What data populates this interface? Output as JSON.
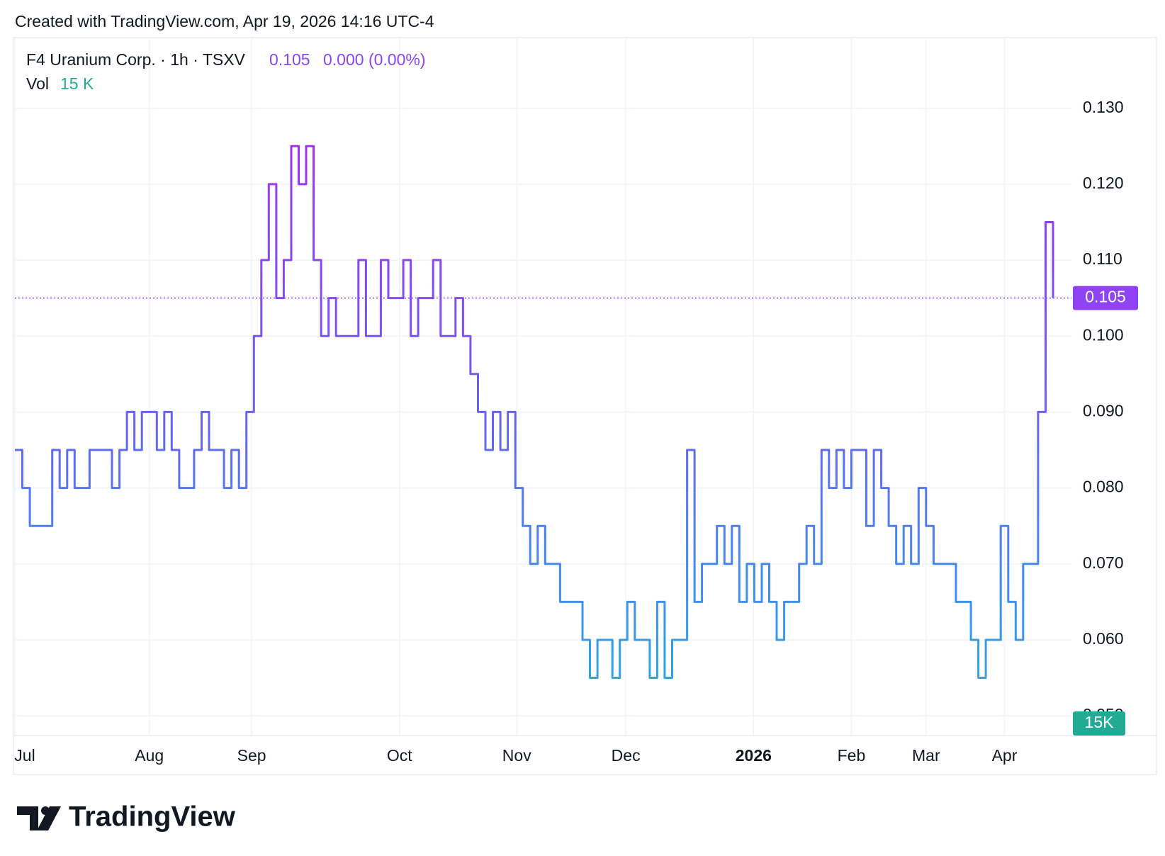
{
  "header": {
    "created": "Created with TradingView.com, Apr 19, 2026 14:16 UTC-4",
    "brand": "TradingView"
  },
  "chart_data": {
    "type": "line",
    "title": "F4 Uranium Corp. · 1h · TSXV",
    "last_price": {
      "value": 0.105,
      "label": "0.105"
    },
    "change": "0.000 (0.00%)",
    "volume_name": "Vol",
    "volume_legend": "15 K",
    "volume_badge": "15K",
    "gradient": [
      "#b81ff0",
      "#6f5cf2",
      "#1fb2ea"
    ],
    "values": [
      0.085,
      0.08,
      0.075,
      0.075,
      0.075,
      0.085,
      0.08,
      0.085,
      0.08,
      0.08,
      0.085,
      0.085,
      0.085,
      0.08,
      0.085,
      0.09,
      0.085,
      0.09,
      0.09,
      0.085,
      0.09,
      0.085,
      0.08,
      0.08,
      0.085,
      0.09,
      0.085,
      0.085,
      0.08,
      0.085,
      0.08,
      0.09,
      0.1,
      0.11,
      0.12,
      0.105,
      0.11,
      0.125,
      0.12,
      0.125,
      0.11,
      0.1,
      0.105,
      0.1,
      0.1,
      0.1,
      0.11,
      0.1,
      0.1,
      0.11,
      0.105,
      0.105,
      0.11,
      0.1,
      0.105,
      0.105,
      0.11,
      0.1,
      0.1,
      0.105,
      0.1,
      0.095,
      0.09,
      0.085,
      0.09,
      0.085,
      0.09,
      0.08,
      0.075,
      0.07,
      0.075,
      0.07,
      0.07,
      0.065,
      0.065,
      0.065,
      0.06,
      0.055,
      0.06,
      0.06,
      0.055,
      0.06,
      0.065,
      0.06,
      0.06,
      0.055,
      0.065,
      0.055,
      0.06,
      0.06,
      0.085,
      0.065,
      0.07,
      0.07,
      0.075,
      0.07,
      0.075,
      0.065,
      0.07,
      0.065,
      0.07,
      0.065,
      0.06,
      0.065,
      0.065,
      0.07,
      0.075,
      0.07,
      0.085,
      0.08,
      0.085,
      0.08,
      0.085,
      0.085,
      0.075,
      0.085,
      0.08,
      0.075,
      0.07,
      0.075,
      0.07,
      0.08,
      0.075,
      0.07,
      0.07,
      0.07,
      0.065,
      0.065,
      0.06,
      0.055,
      0.06,
      0.06,
      0.075,
      0.065,
      0.06,
      0.07,
      0.07,
      0.09,
      0.115,
      0.105
    ],
    "xlim": [
      0,
      139
    ],
    "xticks": [
      {
        "value": 0,
        "label": "Jul"
      },
      {
        "value": 18,
        "label": "Aug"
      },
      {
        "value": 31.7,
        "label": "Sep"
      },
      {
        "value": 51.5,
        "label": "Oct"
      },
      {
        "value": 67.2,
        "label": "Nov"
      },
      {
        "value": 81.8,
        "label": "Dec"
      },
      {
        "value": 98.9,
        "label": "2026"
      },
      {
        "value": 112,
        "label": "Feb"
      },
      {
        "value": 122,
        "label": "Mar"
      },
      {
        "value": 132.5,
        "label": "Apr"
      }
    ],
    "ylim": [
      0.0474,
      0.1393
    ],
    "yticks": [
      {
        "value": 0.05,
        "label": "0.050"
      },
      {
        "value": 0.06,
        "label": "0.060"
      },
      {
        "value": 0.07,
        "label": "0.070"
      },
      {
        "value": 0.08,
        "label": "0.080"
      },
      {
        "value": 0.09,
        "label": "0.090"
      },
      {
        "value": 0.1,
        "label": "0.100"
      },
      {
        "value": 0.11,
        "label": "0.110"
      },
      {
        "value": 0.12,
        "label": "0.120"
      },
      {
        "value": 0.13,
        "label": "0.130"
      }
    ],
    "grid": true
  }
}
